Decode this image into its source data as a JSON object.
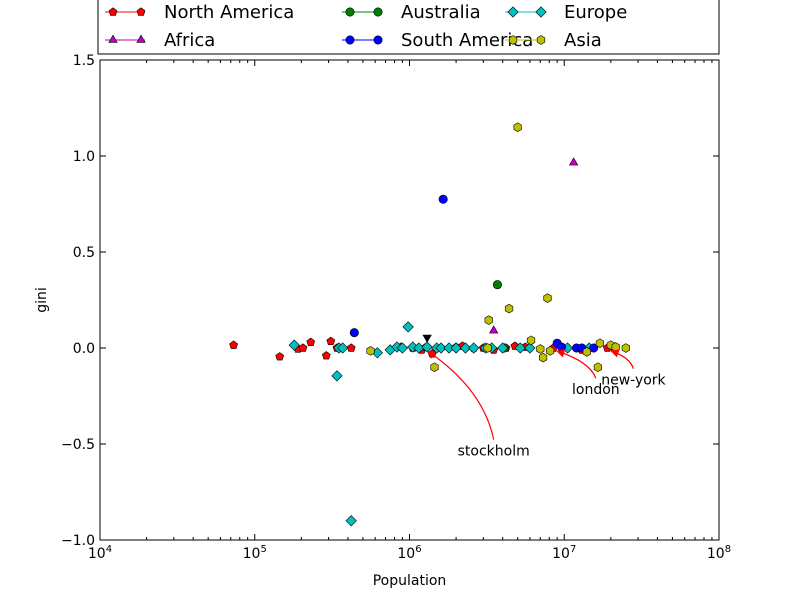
{
  "chart_data": {
    "type": "scatter",
    "xlabel": "Population",
    "ylabel": "gini",
    "xscale": "log",
    "xlim": [
      10000,
      100000000
    ],
    "ylim": [
      -1.0,
      1.5
    ],
    "grid": false,
    "legend_position": "top",
    "x_ticks": [
      {
        "value": 10000,
        "base": "10",
        "exp": "4"
      },
      {
        "value": 100000,
        "base": "10",
        "exp": "5"
      },
      {
        "value": 1000000,
        "base": "10",
        "exp": "6"
      },
      {
        "value": 10000000,
        "base": "10",
        "exp": "7"
      },
      {
        "value": 100000000,
        "base": "10",
        "exp": "8"
      }
    ],
    "y_ticks": [
      {
        "value": -1.0,
        "label": "−1.0"
      },
      {
        "value": -0.5,
        "label": "−0.5"
      },
      {
        "value": 0.0,
        "label": "0.0"
      },
      {
        "value": 0.5,
        "label": "0.5"
      },
      {
        "value": 1.0,
        "label": "1.0"
      },
      {
        "value": 1.5,
        "label": "1.5"
      }
    ],
    "series": [
      {
        "name": "North America",
        "color": "#ff0000",
        "marker": "pentagon",
        "points": [
          [
            73000,
            0.015
          ],
          [
            145000,
            -0.045
          ],
          [
            190000,
            -0.005
          ],
          [
            205000,
            0.0
          ],
          [
            230000,
            0.03
          ],
          [
            290000,
            -0.04
          ],
          [
            310000,
            0.035
          ],
          [
            340000,
            0.0
          ],
          [
            420000,
            0.0
          ],
          [
            880000,
            0.005
          ],
          [
            1050000,
            0.0
          ],
          [
            1200000,
            -0.01
          ],
          [
            1280000,
            0.005
          ],
          [
            1400000,
            -0.03
          ],
          [
            2000000,
            0.005
          ],
          [
            2200000,
            0.01
          ],
          [
            2600000,
            0.0
          ],
          [
            3000000,
            0.0
          ],
          [
            3500000,
            -0.01
          ],
          [
            4200000,
            0.0
          ],
          [
            4800000,
            0.01
          ],
          [
            5600000,
            0.005
          ],
          [
            8500000,
            0.0
          ],
          [
            13000000,
            -0.01
          ],
          [
            19000000,
            0.0
          ],
          [
            21000000,
            0.0
          ]
        ]
      },
      {
        "name": "Australia",
        "color": "#008000",
        "marker": "circle",
        "points": [
          [
            3700000,
            0.33
          ],
          [
            4100000,
            0.0
          ]
        ]
      },
      {
        "name": "Europe",
        "color": "#00bfbf",
        "marker": "diamond",
        "points": [
          [
            180000,
            0.015
          ],
          [
            340000,
            -0.145
          ],
          [
            350000,
            0.0
          ],
          [
            370000,
            0.0
          ],
          [
            420000,
            -0.9
          ],
          [
            620000,
            -0.025
          ],
          [
            750000,
            -0.01
          ],
          [
            830000,
            0.005
          ],
          [
            900000,
            0.0
          ],
          [
            980000,
            0.11
          ],
          [
            1050000,
            0.005
          ],
          [
            1150000,
            0.0
          ],
          [
            1300000,
            0.005
          ],
          [
            1500000,
            0.0
          ],
          [
            1600000,
            0.0
          ],
          [
            1800000,
            0.0
          ],
          [
            2000000,
            0.0
          ],
          [
            2300000,
            0.0
          ],
          [
            2600000,
            0.0
          ],
          [
            3100000,
            0.0
          ],
          [
            3400000,
            0.0
          ],
          [
            4000000,
            0.0
          ],
          [
            5200000,
            0.0
          ],
          [
            6000000,
            0.0
          ],
          [
            10500000,
            0.0
          ],
          [
            14500000,
            0.0
          ]
        ]
      },
      {
        "name": "Africa",
        "color": "#bf00bf",
        "marker": "triangle",
        "points": [
          [
            11500000,
            0.965
          ],
          [
            3500000,
            0.09
          ]
        ]
      },
      {
        "name": "South America",
        "color": "#0000ff",
        "marker": "circle",
        "points": [
          [
            1650000,
            0.775
          ],
          [
            440000,
            0.08
          ],
          [
            9000000,
            0.025
          ],
          [
            9600000,
            0.005
          ],
          [
            12000000,
            0.0
          ],
          [
            13000000,
            0.0
          ],
          [
            15500000,
            0.0
          ]
        ]
      },
      {
        "name": "Asia",
        "color": "#bfbf00",
        "marker": "hexagon",
        "points": [
          [
            5000000,
            1.15
          ],
          [
            7800000,
            0.26
          ],
          [
            4400000,
            0.205
          ],
          [
            3250000,
            0.145
          ],
          [
            6100000,
            0.04
          ],
          [
            1450000,
            -0.1
          ],
          [
            560000,
            -0.015
          ],
          [
            3200000,
            0.0
          ],
          [
            7300000,
            -0.05
          ],
          [
            7000000,
            -0.005
          ],
          [
            8100000,
            -0.015
          ],
          [
            14000000,
            -0.02
          ],
          [
            16500000,
            -0.1
          ],
          [
            17000000,
            0.025
          ],
          [
            20000000,
            0.015
          ],
          [
            21500000,
            0.005
          ],
          [
            25000000,
            0.0
          ]
        ]
      },
      {
        "name": "",
        "color": "#000000",
        "marker": "triangle-down",
        "points": [
          [
            1300000,
            0.055
          ]
        ]
      }
    ],
    "annotations": [
      {
        "text": "stockholm",
        "point": [
          1270000,
          0.0
        ],
        "text_at": [
          3500000,
          -0.54
        ]
      },
      {
        "text": "london",
        "point": [
          8700000,
          0.0
        ],
        "text_at": [
          16000000,
          -0.22
        ]
      },
      {
        "text": "new-york",
        "point": [
          19500000,
          0.0
        ],
        "text_at": [
          28000000,
          -0.17
        ]
      }
    ]
  }
}
